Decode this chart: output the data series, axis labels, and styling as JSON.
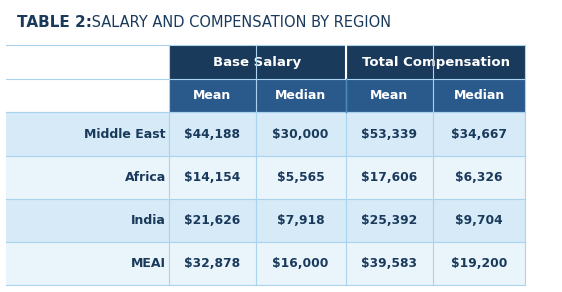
{
  "title_bold": "TABLE 2:",
  "title_normal": " SALARY AND COMPENSATION BY REGION",
  "title_bg": "#6dbf9e",
  "header1_bg": "#1a3a5c",
  "header2_bg": "#2a5a8c",
  "row_bg_light": "#d6eaf8",
  "row_bg_white": "#eaf4fb",
  "col_group_headers": [
    "Base Salary",
    "Total Compensation"
  ],
  "col_sub_headers": [
    "Mean",
    "Median",
    "Mean",
    "Median"
  ],
  "rows": [
    [
      "Middle East",
      "$44,188",
      "$30,000",
      "$53,339",
      "$34,667"
    ],
    [
      "Africa",
      "$14,154",
      "$5,565",
      "$17,606",
      "$6,326"
    ],
    [
      "India",
      "$21,626",
      "$7,918",
      "$25,392",
      "$9,704"
    ],
    [
      "MEAI",
      "$32,878",
      "$16,000",
      "$39,583",
      "$19,200"
    ]
  ],
  "header_text_color": "#ffffff",
  "row_text_color": "#1a3a5c",
  "fig_bg": "#ffffff",
  "border_color": "#aad4ee",
  "divider_color": "#7fb8d8"
}
